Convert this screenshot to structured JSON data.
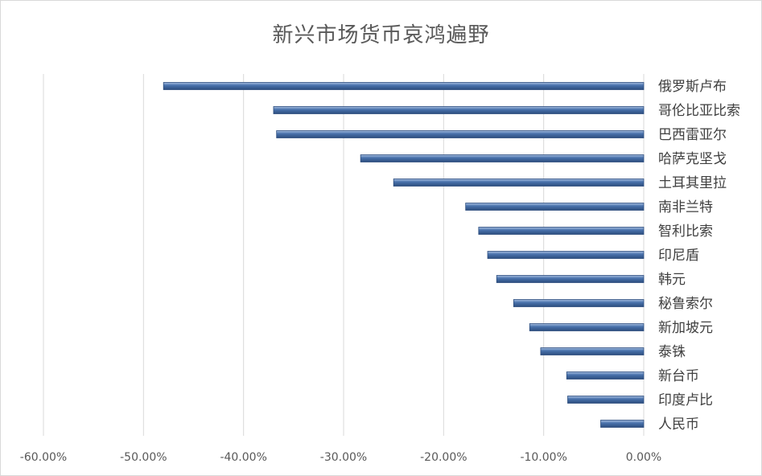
{
  "chart_data": {
    "type": "bar",
    "orientation": "horizontal",
    "title": "新兴市场货币哀鸿遍野",
    "categories": [
      "俄罗斯卢布",
      "哥伦比亚比索",
      "巴西雷亚尔",
      "哈萨克坚戈",
      "土耳其里拉",
      "南非兰特",
      "智利比索",
      "印尼盾",
      "韩元",
      "秘鲁索尔",
      "新加坡元",
      "泰铢",
      "新台币",
      "印度卢比",
      "人民币"
    ],
    "values": [
      -48.0,
      -37.0,
      -36.7,
      -28.3,
      -25.0,
      -17.8,
      -16.5,
      -15.6,
      -14.7,
      -13.0,
      -11.4,
      -10.3,
      -7.7,
      -7.6,
      -4.3
    ],
    "xlim": [
      -60,
      0
    ],
    "xticks": [
      "-60.00%",
      "-50.00%",
      "-40.00%",
      "-30.00%",
      "-20.00%",
      "-10.00%",
      "0.00%"
    ],
    "xtick_values": [
      -60,
      -50,
      -40,
      -30,
      -20,
      -10,
      0
    ],
    "grid": true,
    "bar_color": "#4a73ad",
    "bar_highlight": "#a9c0e0",
    "bar_shadow": "#2c4d7e"
  }
}
